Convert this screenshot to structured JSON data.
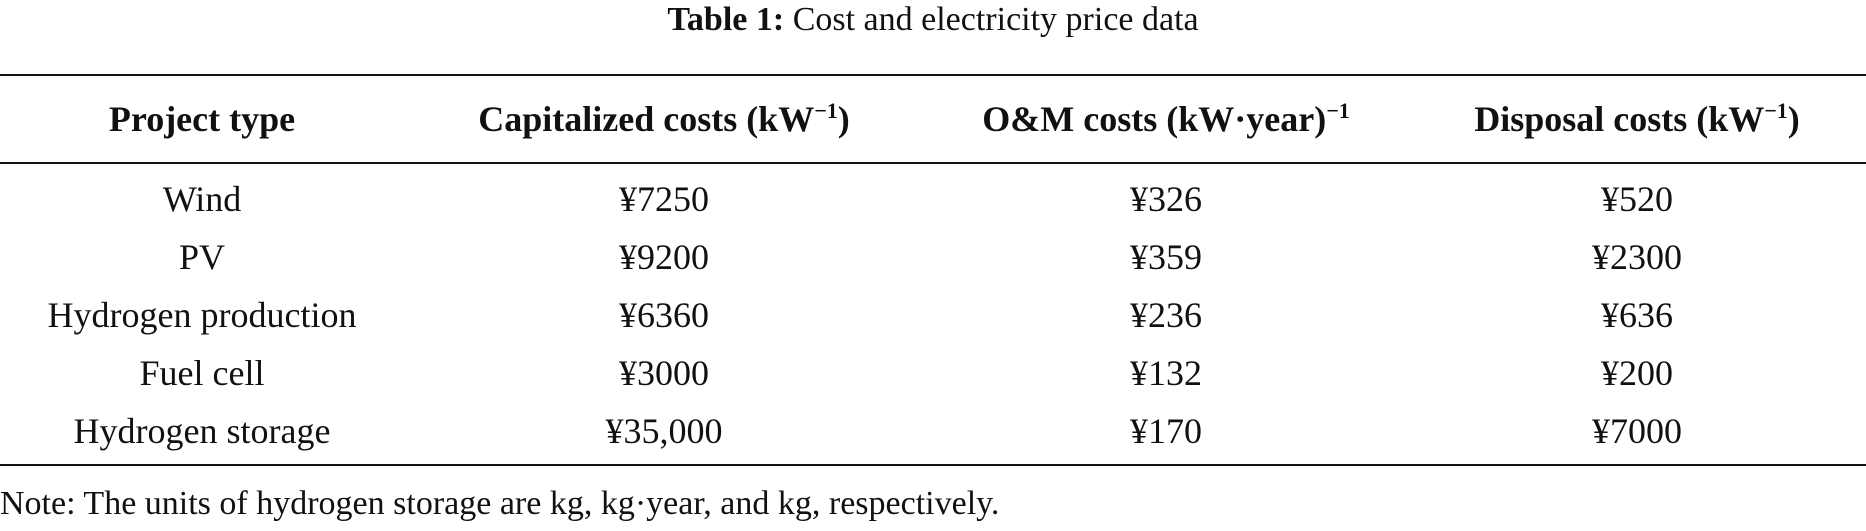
{
  "caption": {
    "label": "Table 1:",
    "text": "Cost and electricity price data"
  },
  "table": {
    "headers": [
      {
        "text": "Project type",
        "sup": ""
      },
      {
        "text": "Capitalized costs (kW",
        "sup": "−1",
        "after": ")"
      },
      {
        "text": "O&M costs (kW·year)",
        "sup": "−1",
        "after": ""
      },
      {
        "text": "Disposal costs (kW",
        "sup": "−1",
        "after": ")"
      }
    ],
    "rows": [
      [
        "Wind",
        "¥7250",
        "¥326",
        "¥520"
      ],
      [
        "PV",
        "¥9200",
        "¥359",
        "¥2300"
      ],
      [
        "Hydrogen production",
        "¥6360",
        "¥236",
        "¥636"
      ],
      [
        "Fuel cell",
        "¥3000",
        "¥132",
        "¥200"
      ],
      [
        "Hydrogen storage",
        "¥35,000",
        "¥170",
        "¥7000"
      ]
    ]
  },
  "note": "Note: The units of hydrogen storage are kg, kg·year, and kg, respectively."
}
